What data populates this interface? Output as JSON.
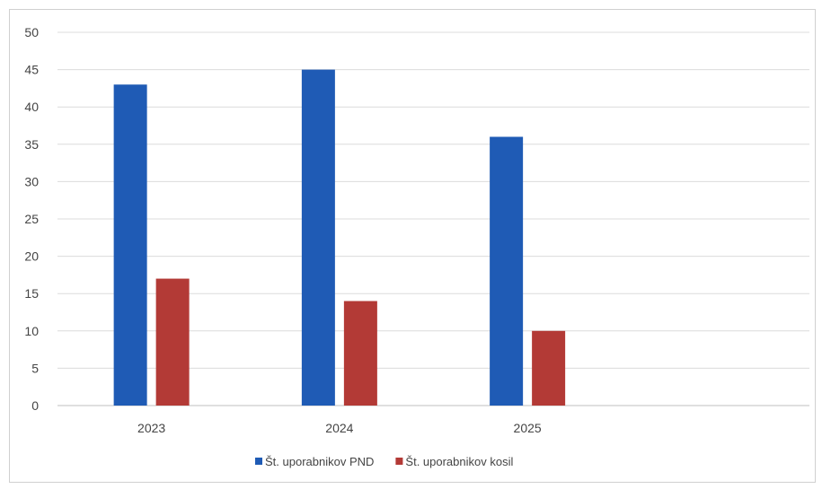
{
  "chart_data": {
    "type": "bar",
    "categories": [
      "2023",
      "2024",
      "2025",
      ""
    ],
    "series": [
      {
        "name": "Št. uporabnikov PND",
        "color": "#1f5bb5",
        "values": [
          43,
          45,
          36,
          null
        ]
      },
      {
        "name": "Št. uporabnikov kosil",
        "color": "#b33a36",
        "values": [
          17,
          14,
          10,
          null
        ]
      }
    ],
    "ylim": [
      0,
      50
    ],
    "yticks": [
      0,
      5,
      10,
      15,
      20,
      25,
      30,
      35,
      40,
      45,
      50
    ],
    "grid": true,
    "legend_position": "bottom"
  }
}
